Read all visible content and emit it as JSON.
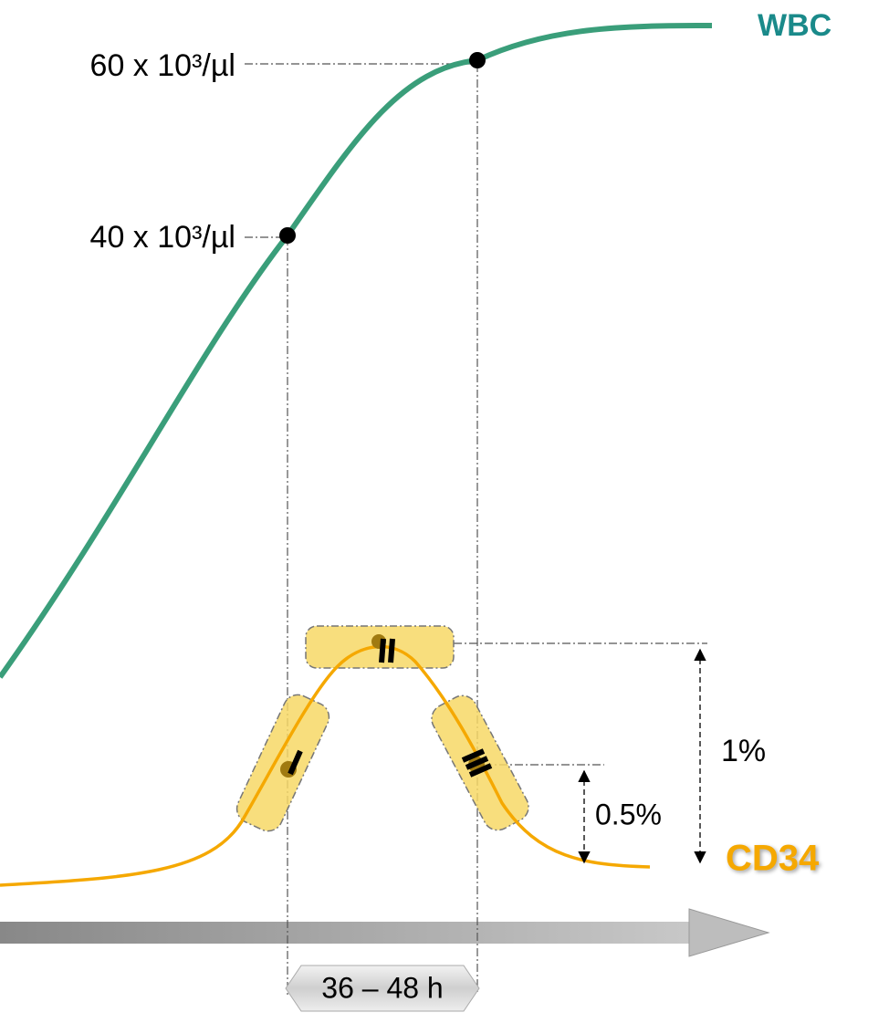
{
  "labels": {
    "wbc": "WBC",
    "cd34": "CD34",
    "wbc_high": "60 x 10³/µl",
    "wbc_low": "40 x 10³/µl",
    "cd34_peak": "1%",
    "cd34_half": "0.5%",
    "window": "36 – 48 h"
  }
}
